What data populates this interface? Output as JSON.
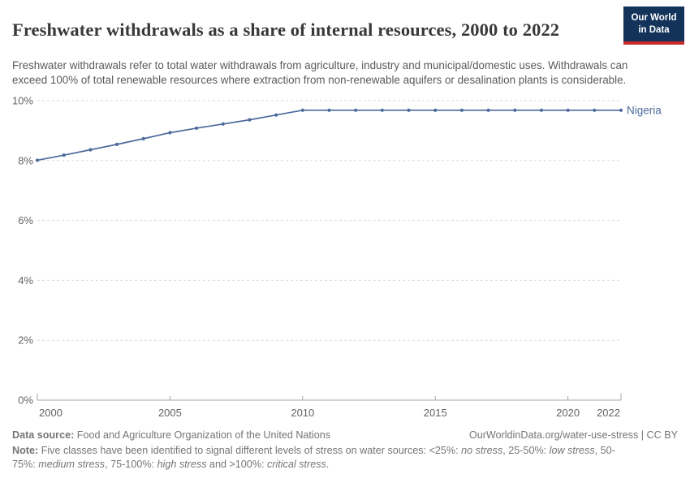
{
  "header": {
    "title": "Freshwater withdrawals as a share of internal resources, 2000 to 2022",
    "subtitle": "Freshwater withdrawals refer to total water withdrawals from agriculture, industry and municipal/domestic uses. Withdrawals can exceed 100% of total renewable resources where extraction from non-renewable aquifers or desalination plants is considerable.",
    "logo": {
      "line1": "Our World",
      "line2": "in Data",
      "bg_color": "#13335b",
      "stripe_color": "#c92a2a"
    }
  },
  "chart_data": {
    "type": "line",
    "title": "Freshwater withdrawals as a share of internal resources, 2000 to 2022",
    "x": [
      2000,
      2001,
      2002,
      2003,
      2004,
      2005,
      2006,
      2007,
      2008,
      2009,
      2010,
      2011,
      2012,
      2013,
      2014,
      2015,
      2016,
      2017,
      2018,
      2019,
      2020,
      2021,
      2022
    ],
    "series": [
      {
        "name": "Nigeria",
        "color": "#4C6A9C",
        "values": [
          8.01,
          8.18,
          8.36,
          8.54,
          8.73,
          8.93,
          9.08,
          9.22,
          9.36,
          9.52,
          9.68,
          9.68,
          9.68,
          9.68,
          9.68,
          9.68,
          9.68,
          9.68,
          9.68,
          9.68,
          9.68,
          9.68,
          9.68
        ]
      }
    ],
    "x_ticks": [
      2000,
      2005,
      2010,
      2015,
      2020,
      2022
    ],
    "y_ticks": [
      0,
      2,
      4,
      6,
      8,
      10
    ],
    "y_tick_suffix": "%",
    "xlim": [
      2000,
      2022
    ],
    "ylim": [
      0,
      10
    ],
    "grid": "horizontal-dashed",
    "legend_position": "entity-label-right-of-line",
    "unit": "%"
  },
  "footer": {
    "datasource_segments": [
      {
        "t": "Data source: ",
        "b": true
      },
      {
        "t": "Food and Agriculture Organization of the United Nations"
      }
    ],
    "license_text": "OurWorldinData.org/water-use-stress | CC BY",
    "note_segments": [
      {
        "t": "Note: ",
        "b": true
      },
      {
        "t": "Five classes have been identified to signal different levels of stress on water sources: <25%: "
      },
      {
        "t": "no stress",
        "i": true
      },
      {
        "t": ", 25-50%: "
      },
      {
        "t": "low stress",
        "i": true
      },
      {
        "t": ", 50-75%: "
      },
      {
        "t": "medium stress",
        "i": true
      },
      {
        "t": ", 75-100%: "
      },
      {
        "t": "high stress",
        "i": true
      },
      {
        "t": " and >100%: "
      },
      {
        "t": "critical stress",
        "i": true
      },
      {
        "t": "."
      }
    ]
  }
}
